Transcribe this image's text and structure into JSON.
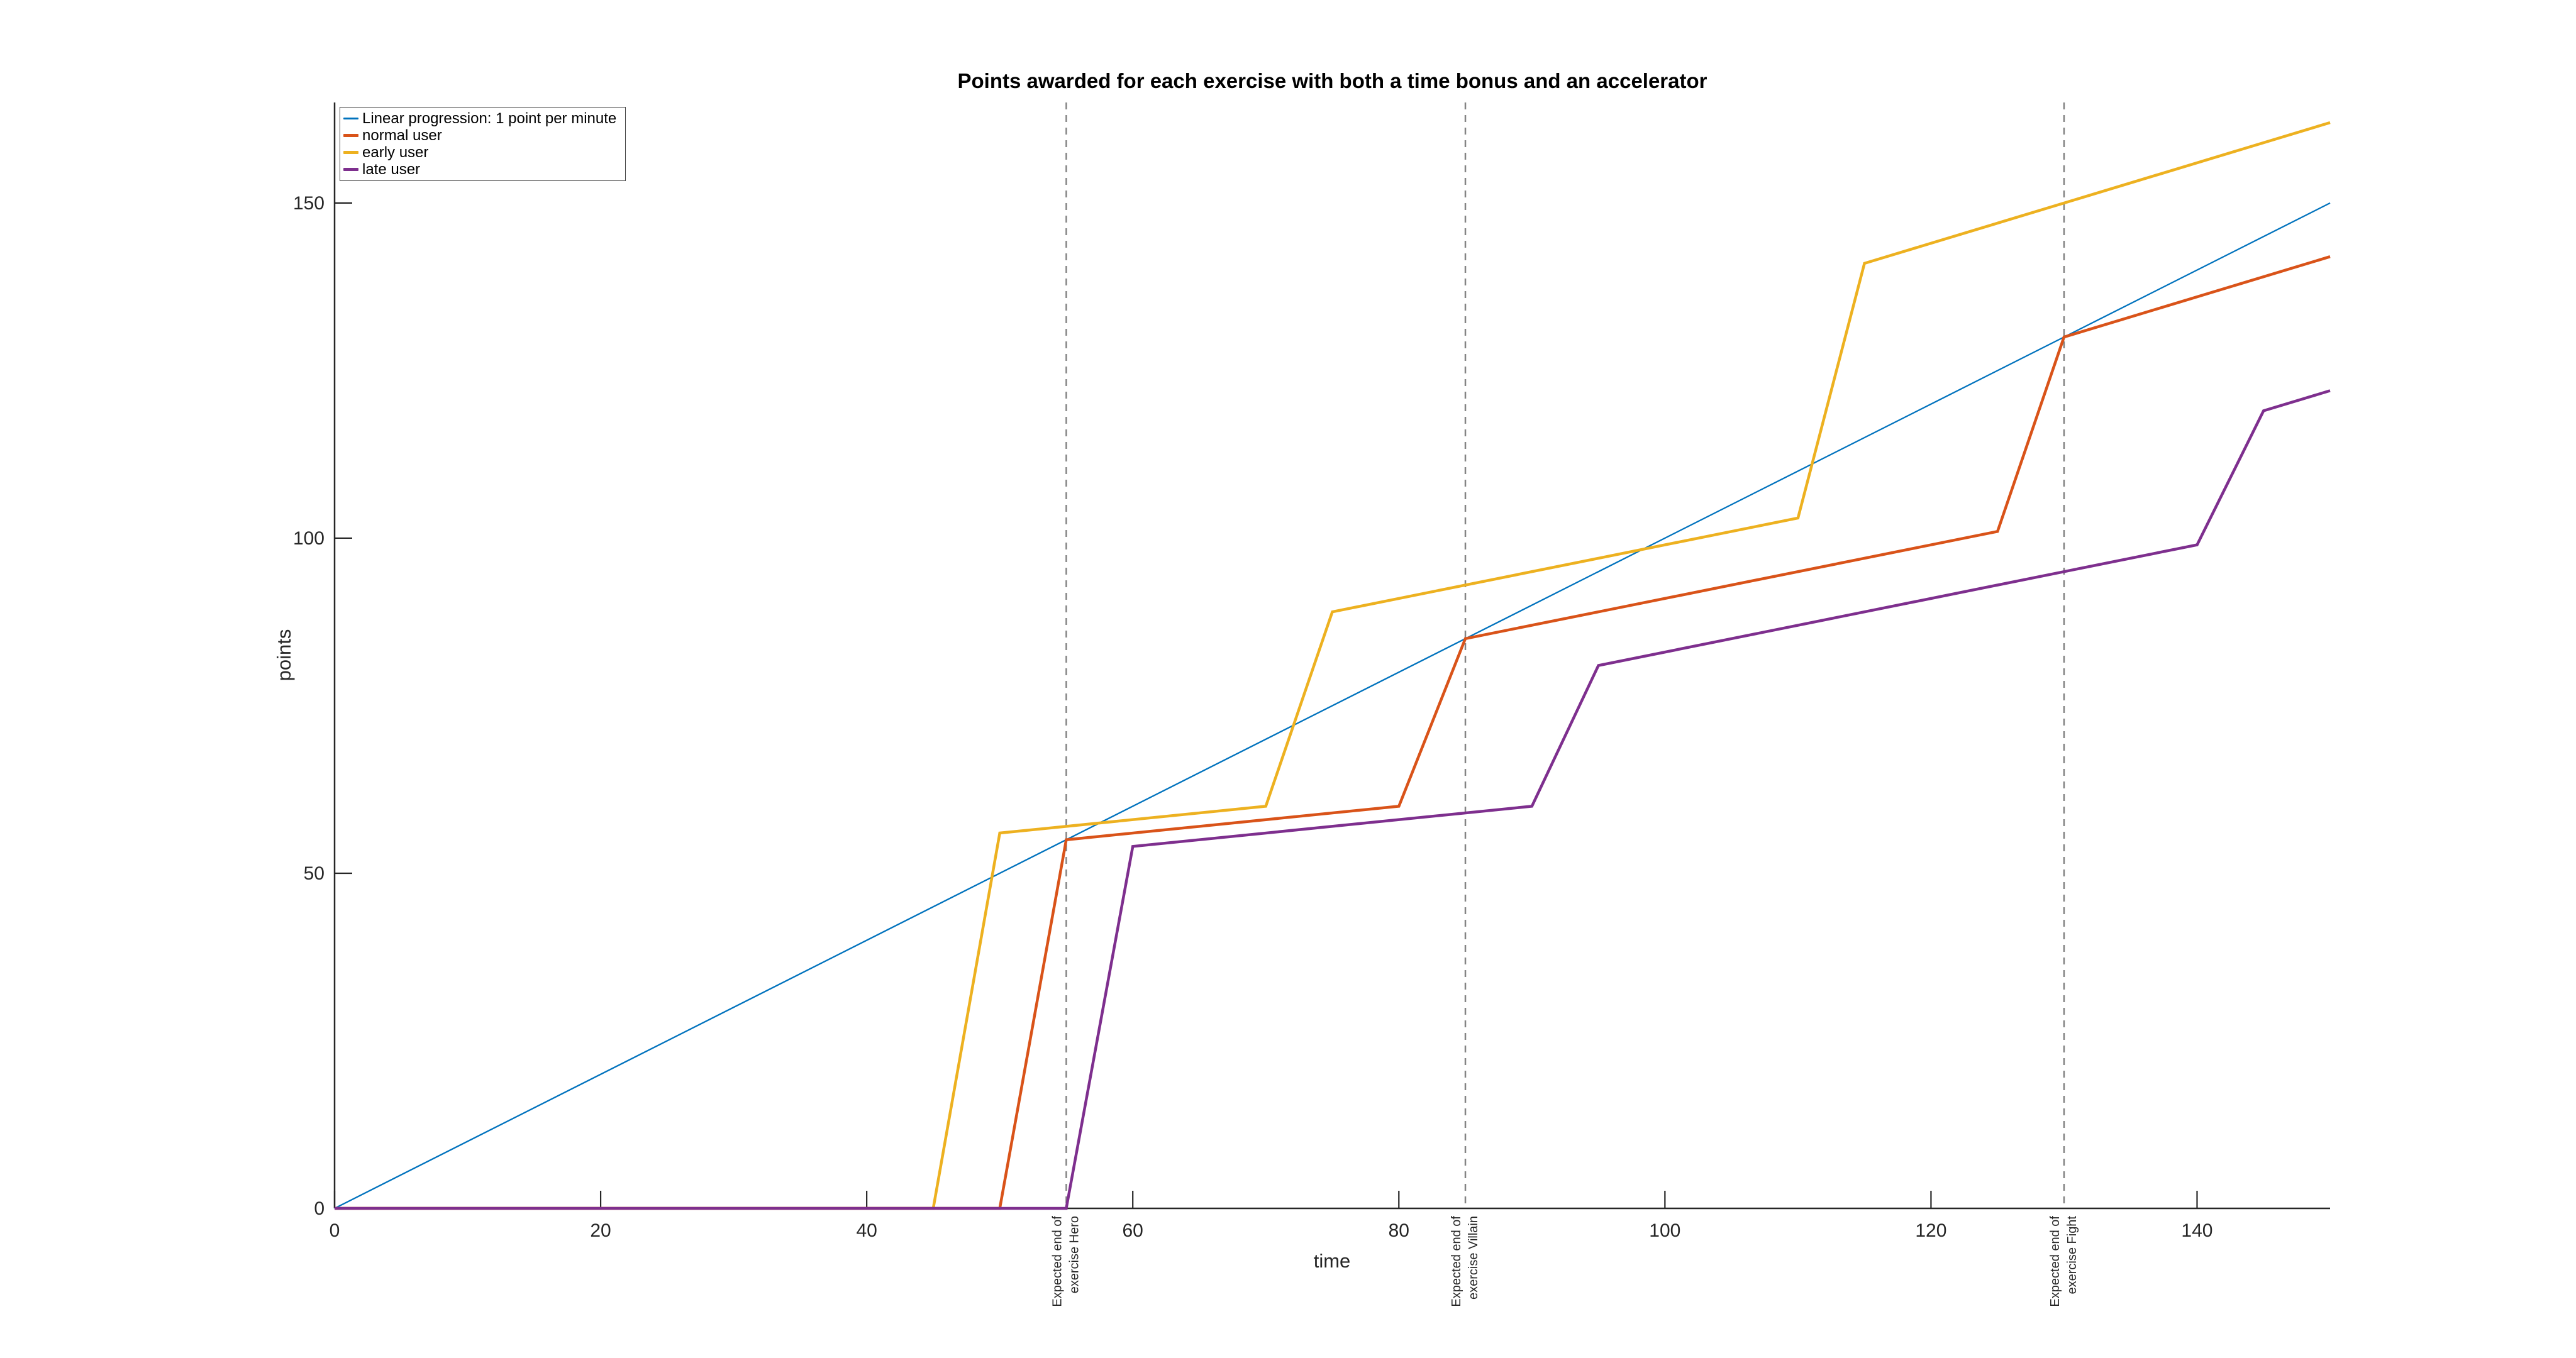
{
  "title": "Points awarded for each exercise with both a time bonus and an accelerator",
  "chart_data": {
    "type": "line",
    "title": "Points awarded for each exercise with both a time bonus and an accelerator",
    "xlabel": "time",
    "ylabel": "points",
    "xlim": [
      0,
      150
    ],
    "ylim": [
      0,
      165
    ],
    "xticks": [
      0,
      20,
      40,
      60,
      80,
      100,
      120,
      140
    ],
    "yticks": [
      0,
      50,
      100,
      150
    ],
    "grid": false,
    "background": "#ffffff",
    "axis_color": "#262626",
    "legend_position": "top-left",
    "series": [
      {
        "key": "linear",
        "name": "Linear progression: 1 point per minute",
        "color": "#0072BD",
        "line_width": 2.3,
        "points": [
          [
            0,
            0
          ],
          [
            150,
            150
          ]
        ]
      },
      {
        "key": "early",
        "name": "early user",
        "color": "#EDB120",
        "line_width": 4.5,
        "points": [
          [
            0,
            0
          ],
          [
            45,
            0
          ],
          [
            50,
            56
          ],
          [
            70,
            60
          ],
          [
            75,
            89
          ],
          [
            110,
            103
          ],
          [
            115,
            141
          ],
          [
            150,
            162
          ]
        ]
      },
      {
        "key": "normal",
        "name": "normal user",
        "color": "#D95319",
        "line_width": 4.5,
        "points": [
          [
            0,
            0
          ],
          [
            50,
            0
          ],
          [
            55,
            55
          ],
          [
            80,
            60
          ],
          [
            85,
            85
          ],
          [
            125,
            101
          ],
          [
            130,
            130
          ],
          [
            150,
            142
          ]
        ]
      },
      {
        "key": "late",
        "name": "late user",
        "color": "#7E2F8E",
        "line_width": 4.5,
        "points": [
          [
            0,
            0
          ],
          [
            55,
            0
          ],
          [
            60,
            54
          ],
          [
            90,
            60
          ],
          [
            95,
            81
          ],
          [
            140,
            99
          ],
          [
            145,
            119
          ],
          [
            150,
            122
          ]
        ]
      }
    ],
    "legend_order": [
      "linear",
      "normal",
      "early",
      "late"
    ],
    "vlines": [
      {
        "x": 55,
        "style": "dashed",
        "color": "#848484",
        "label_lines": [
          "Expected end of",
          "exercise Hero"
        ]
      },
      {
        "x": 85,
        "style": "dashed",
        "color": "#848484",
        "label_lines": [
          "Expected end of",
          "exercise Villain"
        ]
      },
      {
        "x": 130,
        "style": "dashed",
        "color": "#848484",
        "label_lines": [
          "Expected end of",
          "exercise Fight"
        ]
      }
    ]
  }
}
